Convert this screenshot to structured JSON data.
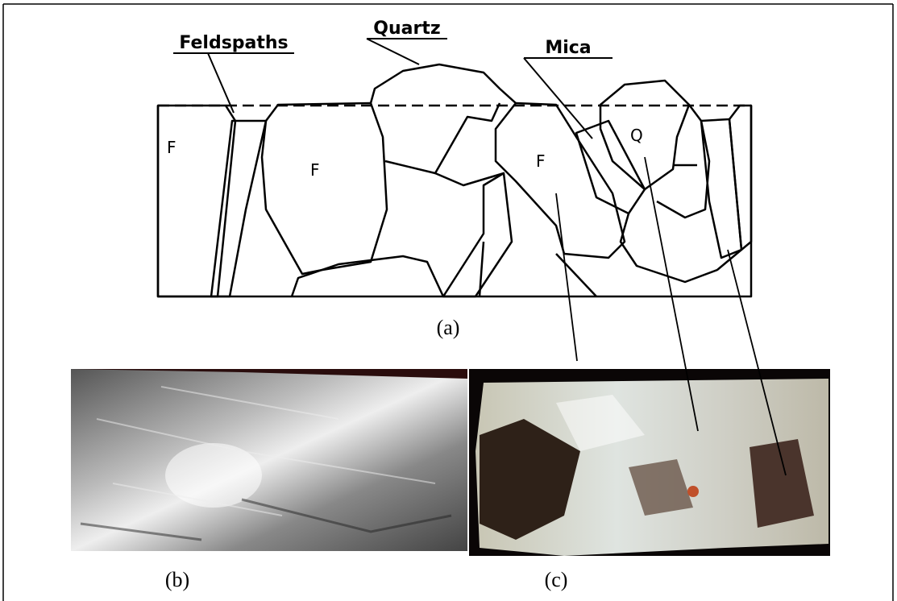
{
  "labels": {
    "feldspaths": "Feldspaths",
    "quartz": "Quartz",
    "mica": "Mica"
  },
  "grain_marks": [
    "F",
    "F",
    "F",
    "Q"
  ],
  "captions": {
    "a": "(a)",
    "b": "(b)",
    "c": "(c)"
  }
}
